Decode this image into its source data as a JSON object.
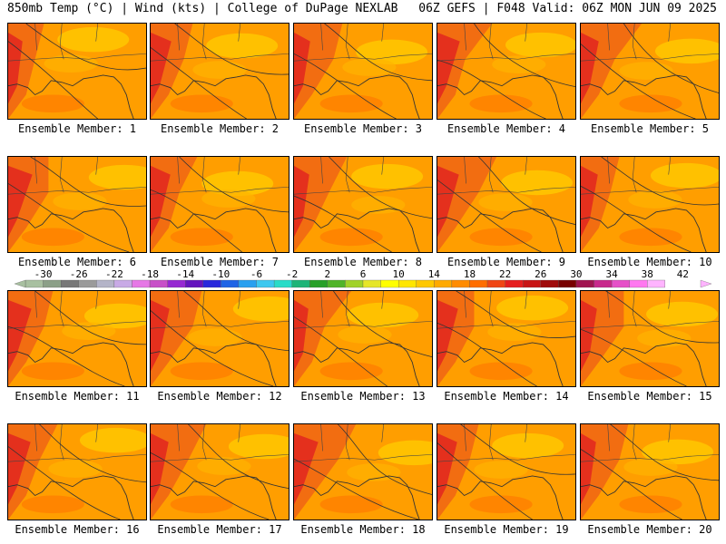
{
  "header": {
    "left": "850mb Temp (°C) | Wind (kts) | College of DuPage NEXLAB",
    "right": "06Z GEFS | F048 Valid: 06Z MON JUN 09 2025"
  },
  "members": [
    {
      "label": "Ensemble Member: 1"
    },
    {
      "label": "Ensemble Member: 2"
    },
    {
      "label": "Ensemble Member: 3"
    },
    {
      "label": "Ensemble Member: 4"
    },
    {
      "label": "Ensemble Member: 5"
    },
    {
      "label": "Ensemble Member: 6"
    },
    {
      "label": "Ensemble Member: 7"
    },
    {
      "label": "Ensemble Member: 8"
    },
    {
      "label": "Ensemble Member: 9"
    },
    {
      "label": "Ensemble Member: 10"
    },
    {
      "label": "Ensemble Member: 11"
    },
    {
      "label": "Ensemble Member: 12"
    },
    {
      "label": "Ensemble Member: 13"
    },
    {
      "label": "Ensemble Member: 14"
    },
    {
      "label": "Ensemble Member: 15"
    },
    {
      "label": "Ensemble Member: 16"
    },
    {
      "label": "Ensemble Member: 17"
    },
    {
      "label": "Ensemble Member: 18"
    },
    {
      "label": "Ensemble Member: 19"
    },
    {
      "label": "Ensemble Member: 20"
    }
  ],
  "colorbar": {
    "labels": [
      "-30",
      "-26",
      "-22",
      "-18",
      "-14",
      "-10",
      "-6",
      "-2",
      "2",
      "6",
      "10",
      "14",
      "18",
      "22",
      "26",
      "30",
      "34",
      "38",
      "42"
    ],
    "colors": [
      "#a8c0a0",
      "#8ca088",
      "#787878",
      "#9a9a9a",
      "#b4b4c8",
      "#c8aae6",
      "#e678e6",
      "#c850c8",
      "#9628d2",
      "#6414be",
      "#2828dc",
      "#1e64e6",
      "#28a0f0",
      "#3cc8f0",
      "#28dcc8",
      "#1eb478",
      "#28a028",
      "#50b428",
      "#a0d228",
      "#e6e628",
      "#ffff00",
      "#ffe600",
      "#ffc800",
      "#ffaa00",
      "#ff8c00",
      "#ff6e00",
      "#f04614",
      "#e61e1e",
      "#c81414",
      "#a00a0a",
      "#780000",
      "#a01450",
      "#c8288c",
      "#e650c8",
      "#ff78f0",
      "#ffb4ff"
    ],
    "range": [
      -32,
      44
    ],
    "step": 2
  }
}
